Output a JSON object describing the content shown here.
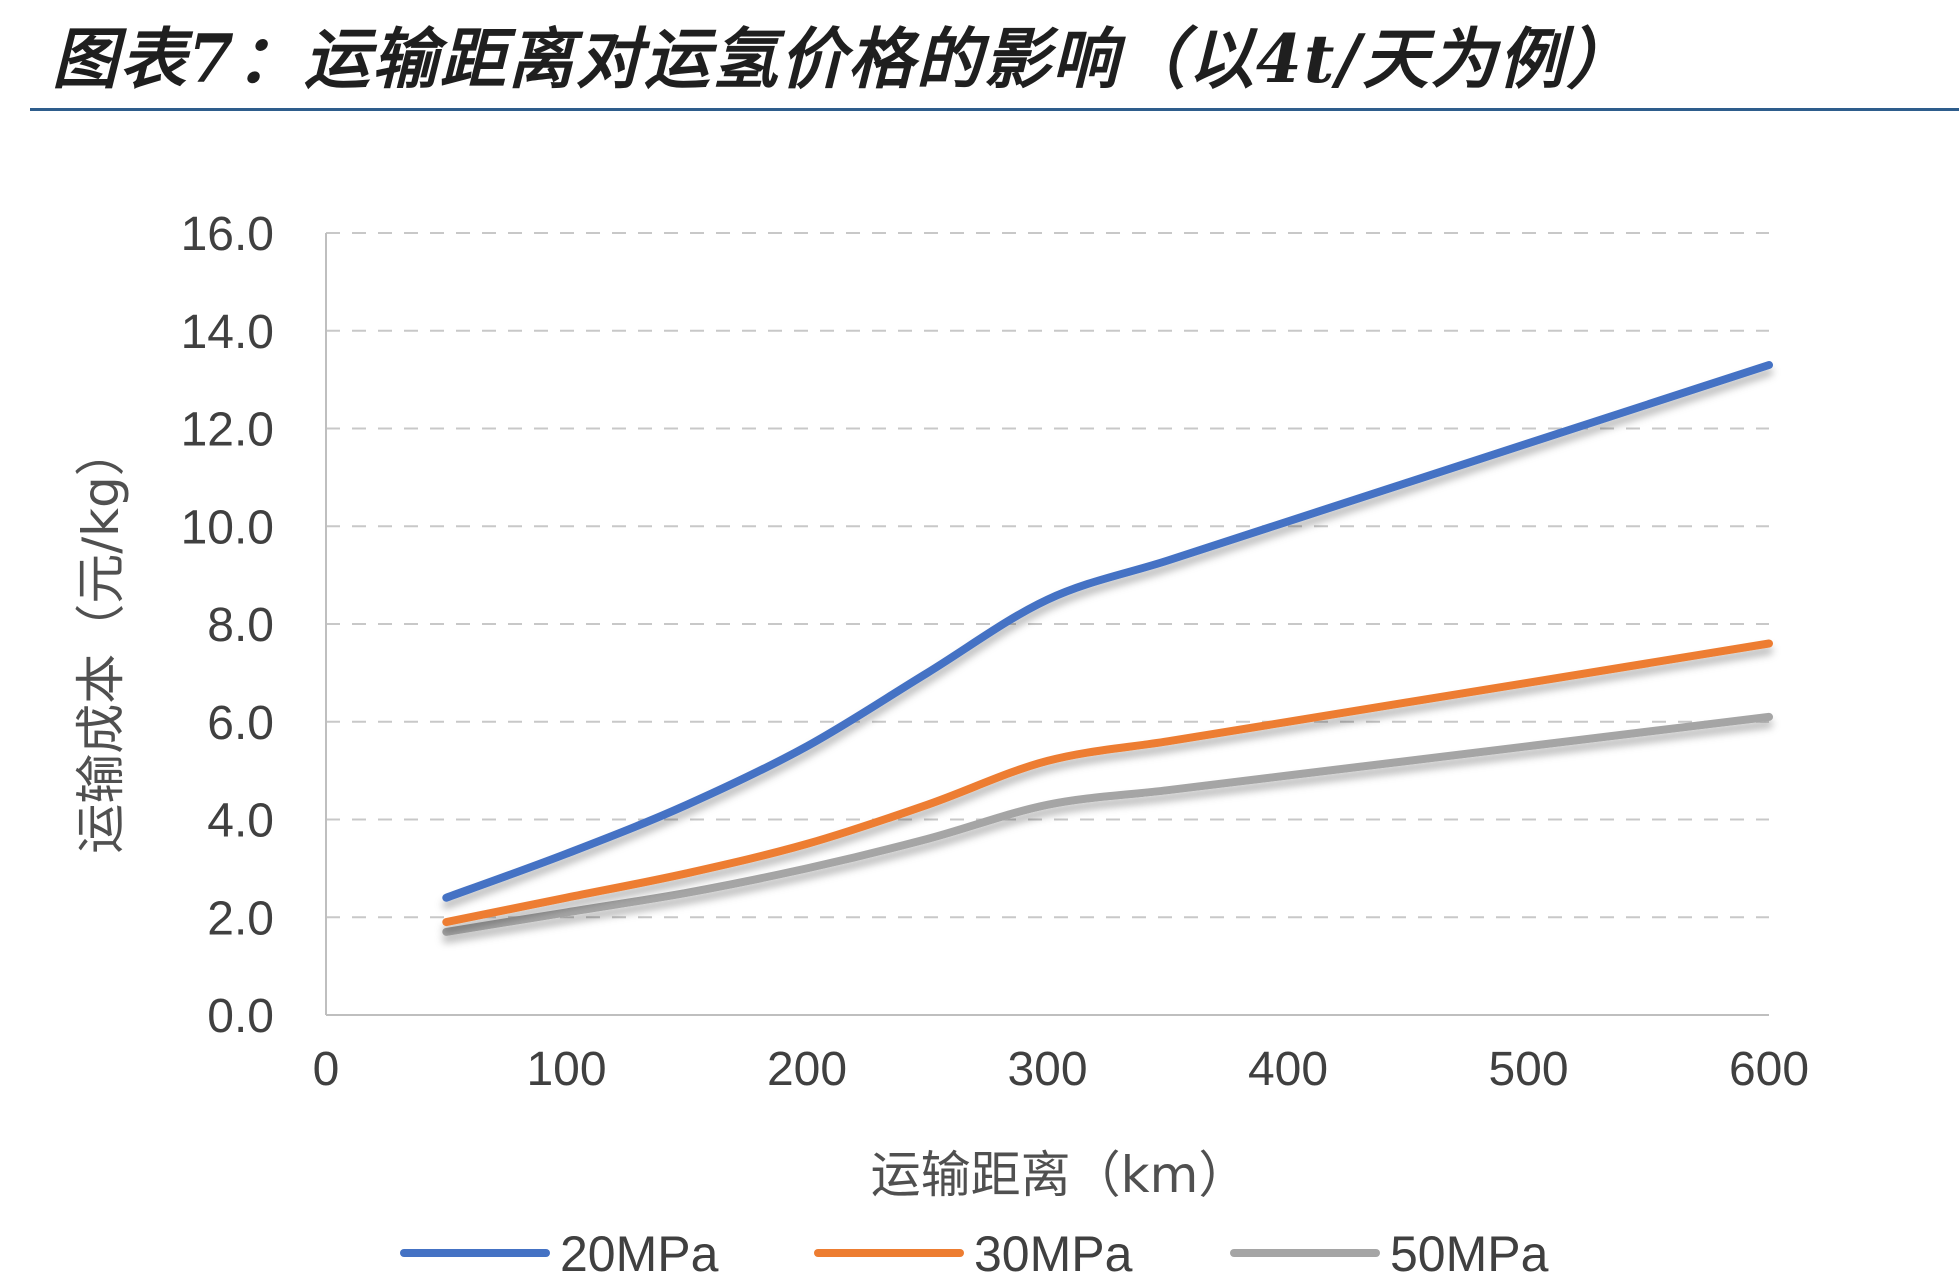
{
  "figure": {
    "title": "图表7：运输距离对运氢价格的影响（以4t/天为例）"
  },
  "chart_data": {
    "type": "line",
    "title": "图表7：运输距离对运氢价格的影响（以4t/天为例）",
    "xlabel": "运输距离（km）",
    "ylabel": "运输成本（元/kg）",
    "xlim": [
      0,
      600
    ],
    "ylim": [
      0,
      16
    ],
    "x_ticks": [
      "0",
      "100",
      "200",
      "300",
      "400",
      "500",
      "600"
    ],
    "y_ticks": [
      "0.0",
      "2.0",
      "4.0",
      "6.0",
      "8.0",
      "10.0",
      "12.0",
      "14.0",
      "16.0"
    ],
    "grid": "horizontal-dashed",
    "legend_position": "bottom",
    "smooth": true,
    "x": [
      50,
      100,
      150,
      200,
      250,
      300,
      350,
      400,
      450,
      500,
      550,
      600
    ],
    "series": [
      {
        "name": "20MPa",
        "color": "#4472C4",
        "values": [
          2.4,
          3.3,
          4.3,
          5.5,
          7.0,
          8.5,
          9.3,
          10.1,
          10.9,
          11.7,
          12.5,
          13.3
        ]
      },
      {
        "name": "30MPa",
        "color": "#ED7D31",
        "values": [
          1.9,
          2.4,
          2.9,
          3.5,
          4.3,
          5.2,
          5.6,
          6.0,
          6.4,
          6.8,
          7.2,
          7.6
        ]
      },
      {
        "name": "50MPa",
        "color": "#A5A5A5",
        "values": [
          1.7,
          2.1,
          2.5,
          3.0,
          3.6,
          4.3,
          4.6,
          4.9,
          5.2,
          5.5,
          5.8,
          6.1
        ]
      }
    ]
  }
}
